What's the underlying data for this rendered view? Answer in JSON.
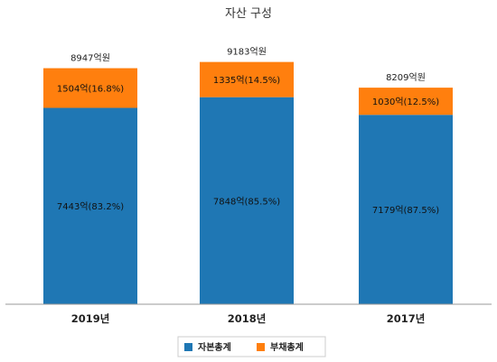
{
  "chart_data": {
    "type": "bar",
    "stacked": true,
    "title": "자산 구성",
    "categories": [
      "2019년",
      "2018년",
      "2017년"
    ],
    "series": [
      {
        "name": "자본총계",
        "color": "#1f77b4",
        "values": [
          7443,
          7848,
          7179
        ],
        "labels": [
          "7443억(83.2%)",
          "7848억(85.5%)",
          "7179억(87.5%)"
        ]
      },
      {
        "name": "부채총계",
        "color": "#ff7f0e",
        "values": [
          1504,
          1335,
          1030
        ],
        "labels": [
          "1504억(16.8%)",
          "1335억(14.5%)",
          "1030억(12.5%)"
        ]
      }
    ],
    "totals": [
      8947,
      9183,
      8209
    ],
    "total_labels": [
      "8947억원",
      "9183억원",
      "8209억원"
    ],
    "ylim": [
      0,
      10300
    ],
    "legend_position": "bottom-center",
    "grid": false
  }
}
